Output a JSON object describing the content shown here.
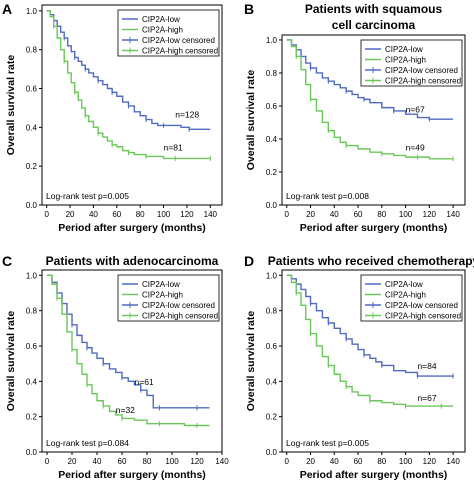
{
  "chart_data": [
    {
      "panel": "A",
      "type": "line",
      "title": "",
      "xlabel": "Period after surgery (months)",
      "ylabel": "Overall survival rate",
      "xticks": [
        0,
        20,
        40,
        60,
        80,
        100,
        120,
        140
      ],
      "yticks": [
        0.0,
        0.2,
        0.4,
        0.6,
        0.8,
        1.0
      ],
      "xlim": [
        -4,
        150
      ],
      "ylim": [
        0,
        1.03
      ],
      "grid": false,
      "legend_position": "top-right",
      "legend": [
        "CIP2A-low",
        "CIP2A-high",
        "CIP2A-low censored",
        "CIP2A-high censored"
      ],
      "annotation": "Log-rank test p=0.005",
      "series": [
        {
          "name": "CIP2A-low",
          "color": "#4f6bc2",
          "x": [
            0,
            3,
            6,
            9,
            12,
            15,
            18,
            21,
            24,
            27,
            30,
            33,
            36,
            40,
            44,
            48,
            52,
            56,
            60,
            65,
            70,
            75,
            80,
            85,
            90,
            95,
            100,
            108,
            115,
            122,
            130,
            140
          ],
          "y": [
            1.0,
            0.98,
            0.95,
            0.92,
            0.89,
            0.86,
            0.82,
            0.79,
            0.76,
            0.74,
            0.72,
            0.7,
            0.68,
            0.66,
            0.64,
            0.62,
            0.6,
            0.58,
            0.56,
            0.53,
            0.51,
            0.48,
            0.46,
            0.44,
            0.42,
            0.41,
            0.41,
            0.41,
            0.4,
            0.39,
            0.39,
            0.39
          ],
          "label": "n=128",
          "label_at": [
            110,
            0.45
          ]
        },
        {
          "name": "CIP2A-high",
          "color": "#6bc75a",
          "x": [
            0,
            3,
            6,
            9,
            12,
            15,
            18,
            21,
            24,
            27,
            30,
            33,
            36,
            40,
            44,
            48,
            52,
            56,
            60,
            65,
            70,
            75,
            80,
            85,
            90,
            100,
            110,
            120,
            130,
            140
          ],
          "y": [
            1.0,
            0.97,
            0.92,
            0.86,
            0.8,
            0.74,
            0.68,
            0.63,
            0.58,
            0.54,
            0.5,
            0.46,
            0.43,
            0.4,
            0.37,
            0.35,
            0.33,
            0.31,
            0.3,
            0.28,
            0.27,
            0.26,
            0.26,
            0.25,
            0.25,
            0.24,
            0.24,
            0.24,
            0.24,
            0.24
          ],
          "label": "n=81",
          "label_at": [
            100,
            0.28
          ]
        }
      ]
    },
    {
      "panel": "B",
      "type": "line",
      "title": "Patients with squamous cell carcinoma",
      "title_lines": [
        "Patients with squamous",
        "cell carcinoma"
      ],
      "xlabel": "Period after surgery (months)",
      "ylabel": "Overall survival rate",
      "xticks": [
        0,
        20,
        40,
        60,
        80,
        100,
        120,
        140
      ],
      "yticks": [
        0.0,
        0.2,
        0.4,
        0.6,
        0.8,
        1.0
      ],
      "xlim": [
        -4,
        150
      ],
      "ylim": [
        0,
        1.03
      ],
      "grid": false,
      "legend_position": "top-right",
      "legend": [
        "CIP2A-low",
        "CIP2A-high",
        "CIP2A-low censored",
        "CIP2A-high censored"
      ],
      "annotation": "Log-rank test p=0.008",
      "series": [
        {
          "name": "CIP2A-low",
          "color": "#4f6bc2",
          "x": [
            0,
            4,
            8,
            12,
            16,
            20,
            25,
            30,
            35,
            40,
            45,
            50,
            55,
            60,
            65,
            70,
            80,
            90,
            100,
            110,
            120,
            130,
            140
          ],
          "y": [
            1.0,
            0.97,
            0.94,
            0.9,
            0.86,
            0.83,
            0.8,
            0.77,
            0.75,
            0.73,
            0.71,
            0.69,
            0.67,
            0.65,
            0.64,
            0.62,
            0.59,
            0.57,
            0.55,
            0.53,
            0.52,
            0.52,
            0.52
          ],
          "label": "n=67",
          "label_at": [
            100,
            0.56
          ]
        },
        {
          "name": "CIP2A-high",
          "color": "#6bc75a",
          "x": [
            0,
            4,
            8,
            12,
            16,
            20,
            25,
            30,
            35,
            40,
            45,
            50,
            60,
            70,
            80,
            90,
            100,
            110,
            120,
            130,
            140
          ],
          "y": [
            1.0,
            0.96,
            0.9,
            0.82,
            0.73,
            0.64,
            0.57,
            0.5,
            0.45,
            0.41,
            0.38,
            0.36,
            0.34,
            0.32,
            0.31,
            0.3,
            0.29,
            0.29,
            0.28,
            0.28,
            0.28
          ],
          "label": "n=49",
          "label_at": [
            100,
            0.33
          ]
        }
      ]
    },
    {
      "panel": "C",
      "type": "line",
      "title": "Patients with adenocarcinoma",
      "xlabel": "Period after surgery (months)",
      "ylabel": "Overall survival rate",
      "xticks": [
        0,
        20,
        40,
        60,
        80,
        100,
        120,
        140
      ],
      "yticks": [
        0.0,
        0.2,
        0.4,
        0.6,
        0.8,
        1.0
      ],
      "xlim": [
        -4,
        140
      ],
      "ylim": [
        0,
        1.03
      ],
      "grid": false,
      "legend_position": "top-right",
      "legend": [
        "CIP2A-low",
        "CIP2A-high",
        "CIP2A-low censored",
        "CIP2A-high censored"
      ],
      "annotation": "Log-rank test p=0.084",
      "series": [
        {
          "name": "CIP2A-low",
          "color": "#4f6bc2",
          "x": [
            0,
            4,
            8,
            12,
            16,
            20,
            24,
            28,
            32,
            36,
            40,
            45,
            50,
            55,
            60,
            65,
            70,
            75,
            80,
            85,
            90,
            100,
            110,
            120,
            130
          ],
          "y": [
            1.0,
            0.96,
            0.9,
            0.84,
            0.78,
            0.72,
            0.66,
            0.62,
            0.59,
            0.56,
            0.53,
            0.5,
            0.47,
            0.45,
            0.42,
            0.4,
            0.38,
            0.35,
            0.32,
            0.25,
            0.25,
            0.25,
            0.25,
            0.25,
            0.25
          ],
          "label": "n=61",
          "label_at": [
            70,
            0.38
          ]
        },
        {
          "name": "CIP2A-high",
          "color": "#6bc75a",
          "x": [
            0,
            4,
            8,
            12,
            16,
            20,
            24,
            28,
            32,
            36,
            40,
            45,
            50,
            55,
            60,
            70,
            80,
            90,
            100,
            110,
            120,
            130
          ],
          "y": [
            1.0,
            0.95,
            0.87,
            0.78,
            0.68,
            0.58,
            0.5,
            0.44,
            0.38,
            0.33,
            0.29,
            0.26,
            0.23,
            0.21,
            0.19,
            0.18,
            0.16,
            0.16,
            0.16,
            0.15,
            0.15,
            0.15
          ],
          "label": "n=32",
          "label_at": [
            55,
            0.22
          ]
        }
      ]
    },
    {
      "panel": "D",
      "type": "line",
      "title": "Patients who received chemotherapy",
      "xlabel": "Period after surgery (months)",
      "ylabel": "Overall survival rate",
      "xticks": [
        0,
        20,
        40,
        60,
        80,
        100,
        120,
        140
      ],
      "yticks": [
        0.0,
        0.2,
        0.4,
        0.6,
        0.8,
        1.0
      ],
      "xlim": [
        -4,
        150
      ],
      "ylim": [
        0,
        1.03
      ],
      "grid": false,
      "legend_position": "top-right",
      "legend": [
        "CIP2A-low",
        "CIP2A-high",
        "CIP2A-low censored",
        "CIP2A-high censored"
      ],
      "annotation": "Log-rank test p=0.005",
      "series": [
        {
          "name": "CIP2A-low",
          "color": "#4f6bc2",
          "x": [
            0,
            4,
            8,
            12,
            16,
            20,
            25,
            30,
            35,
            40,
            45,
            50,
            55,
            60,
            65,
            70,
            75,
            80,
            90,
            100,
            110,
            120,
            130,
            140
          ],
          "y": [
            1.0,
            0.98,
            0.95,
            0.92,
            0.88,
            0.84,
            0.8,
            0.76,
            0.73,
            0.7,
            0.67,
            0.64,
            0.61,
            0.58,
            0.55,
            0.53,
            0.51,
            0.49,
            0.46,
            0.45,
            0.43,
            0.43,
            0.43,
            0.43
          ],
          "label": "n=84",
          "label_at": [
            110,
            0.47
          ]
        },
        {
          "name": "CIP2A-high",
          "color": "#6bc75a",
          "x": [
            0,
            4,
            8,
            12,
            16,
            20,
            25,
            30,
            35,
            40,
            45,
            50,
            55,
            60,
            70,
            80,
            90,
            100,
            110,
            120,
            130,
            140
          ],
          "y": [
            1.0,
            0.96,
            0.9,
            0.83,
            0.75,
            0.67,
            0.6,
            0.54,
            0.49,
            0.44,
            0.4,
            0.37,
            0.34,
            0.32,
            0.29,
            0.28,
            0.27,
            0.26,
            0.26,
            0.26,
            0.26,
            0.26
          ],
          "label": "n=67",
          "label_at": [
            110,
            0.29
          ]
        }
      ]
    }
  ]
}
